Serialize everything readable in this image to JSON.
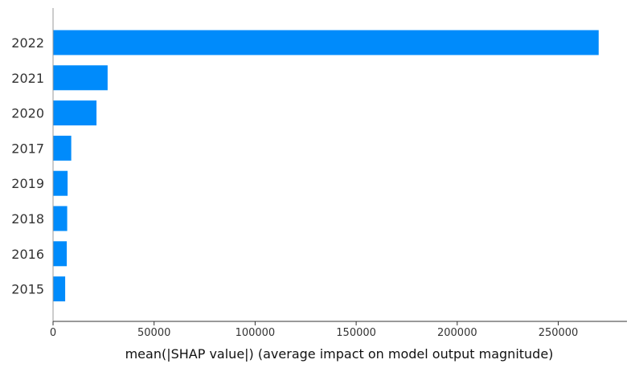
{
  "chart_data": {
    "type": "bar",
    "orientation": "horizontal",
    "categories": [
      "2022",
      "2021",
      "2020",
      "2017",
      "2019",
      "2018",
      "2016",
      "2015"
    ],
    "values": [
      270000,
      27000,
      21500,
      9000,
      7200,
      7000,
      6800,
      6000
    ],
    "xlabel": "mean(|SHAP value|) (average impact on model output magnitude)",
    "ylabel": "",
    "xlim": [
      0,
      284000
    ],
    "xticks": [
      0,
      50000,
      100000,
      150000,
      200000,
      250000
    ],
    "xtick_labels": [
      "0",
      "50000",
      "100000",
      "150000",
      "200000",
      "250000"
    ],
    "grid": false,
    "bar_color": "#008bfb"
  }
}
